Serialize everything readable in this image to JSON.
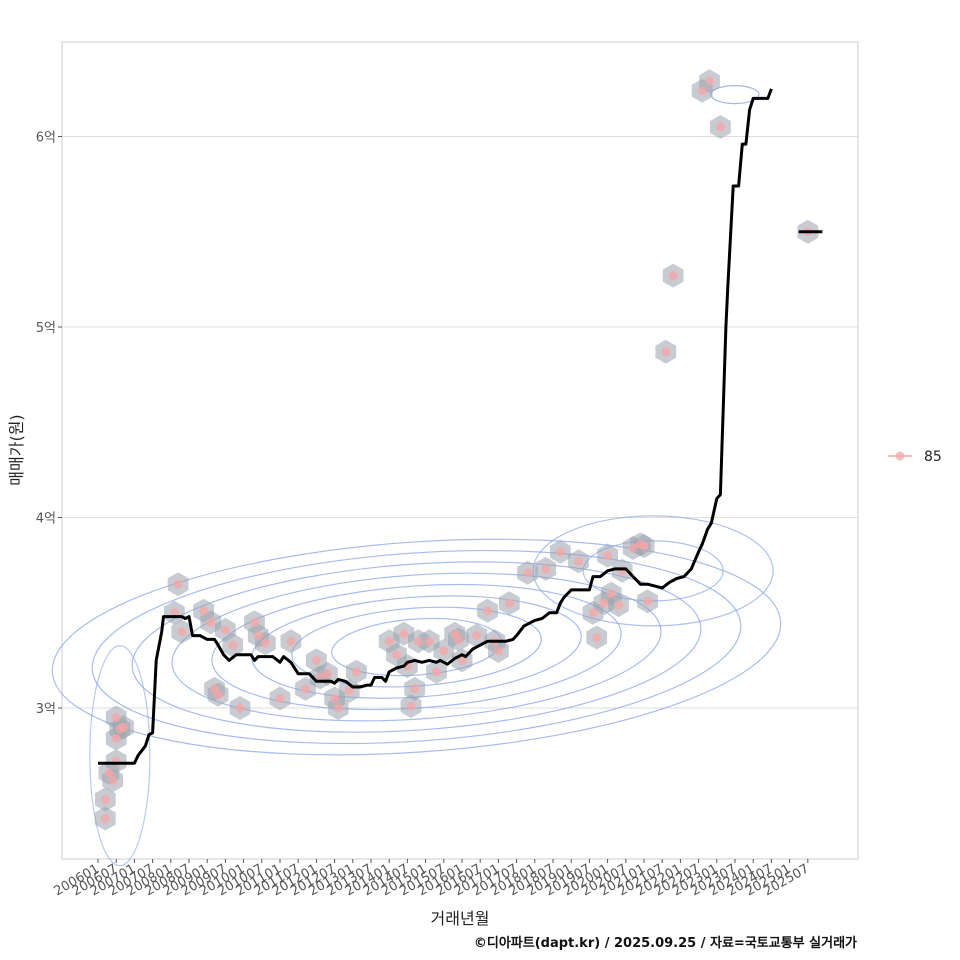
{
  "chart_data": {
    "type": "line",
    "title": "",
    "xlabel": "거래년월",
    "ylabel": "매매가(원)",
    "caption": "©디아파트(dapt.kr) / 2025.09.25 / 자료=국토교통부 실거래가",
    "x_tick_labels": [
      "200601",
      "200607",
      "200701",
      "200707",
      "200801",
      "200807",
      "200901",
      "200907",
      "201001",
      "201007",
      "201101",
      "201107",
      "201201",
      "201207",
      "201301",
      "201307",
      "201401",
      "201407",
      "201501",
      "201507",
      "201601",
      "201607",
      "201701",
      "201707",
      "201801",
      "201807",
      "201901",
      "201907",
      "202001",
      "202007",
      "202101",
      "202107",
      "202201",
      "202207",
      "202301",
      "202307",
      "202401",
      "202407",
      "202501",
      "202507"
    ],
    "y_tick_labels": [
      "3억",
      "4억",
      "5억",
      "6억"
    ],
    "y_ticks": [
      3,
      4,
      5,
      6
    ],
    "ylim": [
      2.25,
      6.5
    ],
    "x_range_index": [
      -2,
      41
    ],
    "legend": [
      {
        "label": "85",
        "color": "#f4a6a6"
      }
    ],
    "colors": {
      "line": "#000000",
      "points": "#f4a6a6",
      "hexbin": "#9aa3ad",
      "contour": "#8aa6e8",
      "grid": "#dedede",
      "frame": "#cccccc"
    },
    "series": [
      {
        "name": "moving-average",
        "points": [
          [
            0,
            2.71
          ],
          [
            2,
            2.71
          ],
          [
            2.2,
            2.75
          ],
          [
            2.6,
            2.8
          ],
          [
            2.8,
            2.86
          ],
          [
            3,
            2.87
          ],
          [
            3.2,
            3.25
          ],
          [
            3.5,
            3.4
          ],
          [
            3.6,
            3.48
          ],
          [
            3.8,
            3.48
          ],
          [
            4.4,
            3.48
          ],
          [
            4.6,
            3.48
          ],
          [
            4.8,
            3.47
          ],
          [
            5.0,
            3.48
          ],
          [
            5.2,
            3.38
          ],
          [
            5.6,
            3.38
          ],
          [
            6.0,
            3.36
          ],
          [
            6.4,
            3.36
          ],
          [
            6.6,
            3.33
          ],
          [
            6.9,
            3.28
          ],
          [
            7.2,
            3.25
          ],
          [
            7.6,
            3.28
          ],
          [
            8.0,
            3.28
          ],
          [
            8.4,
            3.28
          ],
          [
            8.6,
            3.25
          ],
          [
            8.8,
            3.27
          ],
          [
            9.2,
            3.27
          ],
          [
            9.6,
            3.27
          ],
          [
            10.0,
            3.24
          ],
          [
            10.2,
            3.27
          ],
          [
            10.6,
            3.24
          ],
          [
            11.0,
            3.18
          ],
          [
            11.6,
            3.18
          ],
          [
            12.0,
            3.14
          ],
          [
            12.4,
            3.14
          ],
          [
            12.8,
            3.14
          ],
          [
            13.0,
            3.13
          ],
          [
            13.2,
            3.15
          ],
          [
            13.6,
            3.14
          ],
          [
            14.0,
            3.11
          ],
          [
            14.4,
            3.11
          ],
          [
            14.8,
            3.12
          ],
          [
            15.0,
            3.12
          ],
          [
            15.2,
            3.16
          ],
          [
            15.6,
            3.16
          ],
          [
            15.8,
            3.14
          ],
          [
            16.0,
            3.19
          ],
          [
            16.4,
            3.21
          ],
          [
            16.8,
            3.22
          ],
          [
            17.0,
            3.24
          ],
          [
            17.4,
            3.25
          ],
          [
            17.8,
            3.24
          ],
          [
            18.2,
            3.25
          ],
          [
            18.6,
            3.24
          ],
          [
            18.8,
            3.25
          ],
          [
            19.2,
            3.23
          ],
          [
            19.6,
            3.26
          ],
          [
            20.0,
            3.28
          ],
          [
            20.2,
            3.27
          ],
          [
            20.6,
            3.31
          ],
          [
            21.0,
            3.33
          ],
          [
            21.4,
            3.35
          ],
          [
            22.0,
            3.35
          ],
          [
            22.4,
            3.35
          ],
          [
            22.8,
            3.36
          ],
          [
            23.0,
            3.38
          ],
          [
            23.4,
            3.43
          ],
          [
            24.0,
            3.46
          ],
          [
            24.4,
            3.47
          ],
          [
            24.8,
            3.5
          ],
          [
            25.2,
            3.5
          ],
          [
            25.4,
            3.55
          ],
          [
            25.6,
            3.58
          ],
          [
            26.0,
            3.62
          ],
          [
            26.4,
            3.62
          ],
          [
            26.8,
            3.62
          ],
          [
            27.0,
            3.62
          ],
          [
            27.2,
            3.69
          ],
          [
            27.6,
            3.69
          ],
          [
            28.0,
            3.72
          ],
          [
            28.4,
            3.73
          ],
          [
            29.0,
            3.73
          ],
          [
            29.4,
            3.69
          ],
          [
            29.8,
            3.65
          ],
          [
            30.2,
            3.65
          ],
          [
            30.6,
            3.64
          ],
          [
            31.0,
            3.63
          ],
          [
            31.4,
            3.66
          ],
          [
            31.8,
            3.68
          ],
          [
            32.2,
            3.69
          ],
          [
            32.6,
            3.73
          ],
          [
            33.0,
            3.82
          ],
          [
            33.2,
            3.86
          ],
          [
            33.5,
            3.94
          ],
          [
            33.7,
            3.97
          ],
          [
            34.0,
            4.1
          ],
          [
            34.2,
            4.12
          ],
          [
            34.5,
            5.0
          ],
          [
            34.6,
            5.2
          ],
          [
            34.9,
            5.74
          ],
          [
            35.2,
            5.74
          ],
          [
            35.4,
            5.96
          ],
          [
            35.6,
            5.96
          ],
          [
            35.8,
            6.14
          ],
          [
            36.0,
            6.2
          ],
          [
            36.4,
            6.2
          ],
          [
            36.8,
            6.2
          ],
          [
            37.0,
            6.25
          ]
        ]
      },
      {
        "name": "moving-average-2025",
        "points": [
          [
            38.5,
            5.5
          ],
          [
            39.8,
            5.5
          ]
        ]
      },
      {
        "name": "85",
        "type": "scatter",
        "points": [
          [
            0.4,
            2.52
          ],
          [
            0.4,
            2.42
          ],
          [
            0.6,
            2.66
          ],
          [
            0.8,
            2.62
          ],
          [
            1.0,
            2.84
          ],
          [
            1.0,
            2.95
          ],
          [
            1.2,
            2.89
          ],
          [
            1.4,
            2.9
          ],
          [
            1.0,
            2.72
          ],
          [
            4.4,
            3.65
          ],
          [
            4.2,
            3.5
          ],
          [
            4.6,
            3.4
          ],
          [
            5.8,
            3.51
          ],
          [
            6.2,
            3.45
          ],
          [
            6.4,
            3.1
          ],
          [
            6.6,
            3.07
          ],
          [
            7.0,
            3.41
          ],
          [
            7.4,
            3.33
          ],
          [
            7.8,
            3.0
          ],
          [
            8.6,
            3.45
          ],
          [
            8.8,
            3.38
          ],
          [
            9.2,
            3.34
          ],
          [
            10.0,
            3.05
          ],
          [
            10.6,
            3.35
          ],
          [
            11.4,
            3.1
          ],
          [
            12.0,
            3.25
          ],
          [
            12.2,
            3.16
          ],
          [
            12.6,
            3.18
          ],
          [
            13.0,
            3.05
          ],
          [
            13.2,
            3.0
          ],
          [
            13.8,
            3.09
          ],
          [
            14.2,
            3.19
          ],
          [
            16.0,
            3.35
          ],
          [
            16.4,
            3.28
          ],
          [
            16.8,
            3.39
          ],
          [
            17.0,
            3.22
          ],
          [
            17.2,
            3.01
          ],
          [
            17.4,
            3.1
          ],
          [
            17.6,
            3.35
          ],
          [
            18.2,
            3.35
          ],
          [
            18.6,
            3.19
          ],
          [
            19.0,
            3.3
          ],
          [
            19.6,
            3.39
          ],
          [
            19.8,
            3.36
          ],
          [
            20.0,
            3.25
          ],
          [
            20.8,
            3.38
          ],
          [
            21.4,
            3.51
          ],
          [
            21.8,
            3.35
          ],
          [
            22.0,
            3.3
          ],
          [
            22.6,
            3.55
          ],
          [
            23.6,
            3.71
          ],
          [
            24.6,
            3.73
          ],
          [
            25.4,
            3.82
          ],
          [
            26.4,
            3.77
          ],
          [
            27.2,
            3.5
          ],
          [
            27.4,
            3.37
          ],
          [
            27.8,
            3.55
          ],
          [
            28.0,
            3.8
          ],
          [
            28.2,
            3.6
          ],
          [
            28.6,
            3.54
          ],
          [
            28.8,
            3.72
          ],
          [
            29.4,
            3.84
          ],
          [
            29.8,
            3.86
          ],
          [
            30.0,
            3.85
          ],
          [
            30.2,
            3.56
          ],
          [
            31.2,
            4.87
          ],
          [
            31.6,
            5.27
          ],
          [
            33.2,
            6.24
          ],
          [
            33.6,
            6.29
          ],
          [
            34.2,
            6.05
          ],
          [
            39.0,
            5.5
          ]
        ]
      }
    ]
  }
}
